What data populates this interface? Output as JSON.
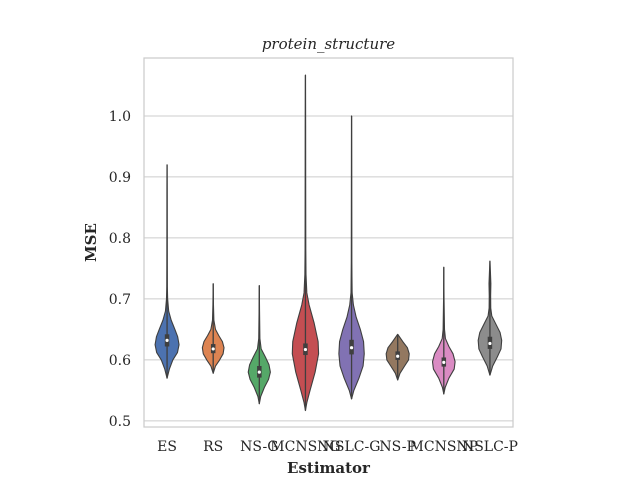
{
  "chart_data": {
    "type": "violin",
    "title": "protein_structure",
    "xlabel": "Estimator",
    "ylabel": "MSE",
    "ylim": [
      0.49,
      1.095
    ],
    "yticks": [
      0.5,
      0.6,
      0.7,
      0.8,
      0.9,
      1.0
    ],
    "ytick_labels": [
      "0.5",
      "0.6",
      "0.7",
      "0.8",
      "0.9",
      "1.0"
    ],
    "grid": "horizontal",
    "categories": [
      "ES",
      "RS",
      "NS-G",
      "MCNSNG",
      "NSLC-G",
      "NS-P",
      "MCNSNP",
      "NSLC-P"
    ],
    "violins": [
      {
        "name": "ES",
        "color": "#4c72b0",
        "min": 0.57,
        "max": 0.92,
        "q1": 0.622,
        "median": 0.632,
        "q3": 0.642,
        "profile": [
          [
            0.57,
            0
          ],
          [
            0.585,
            0.1
          ],
          [
            0.6,
            0.25
          ],
          [
            0.612,
            0.45
          ],
          [
            0.625,
            0.52
          ],
          [
            0.638,
            0.46
          ],
          [
            0.65,
            0.34
          ],
          [
            0.665,
            0.18
          ],
          [
            0.68,
            0.07
          ],
          [
            0.7,
            0.025
          ],
          [
            0.72,
            0.012
          ],
          [
            0.76,
            0.008
          ],
          [
            0.82,
            0.005
          ],
          [
            0.88,
            0.004
          ],
          [
            0.92,
            0
          ]
        ]
      },
      {
        "name": "RS",
        "color": "#dd8452",
        "min": 0.578,
        "max": 0.725,
        "q1": 0.611,
        "median": 0.618,
        "q3": 0.626,
        "profile": [
          [
            0.578,
            0
          ],
          [
            0.59,
            0.1
          ],
          [
            0.6,
            0.28
          ],
          [
            0.61,
            0.43
          ],
          [
            0.62,
            0.47
          ],
          [
            0.63,
            0.4
          ],
          [
            0.64,
            0.24
          ],
          [
            0.65,
            0.1
          ],
          [
            0.665,
            0.03
          ],
          [
            0.69,
            0.012
          ],
          [
            0.725,
            0
          ]
        ]
      },
      {
        "name": "NS-G",
        "color": "#55a868",
        "min": 0.528,
        "max": 0.722,
        "q1": 0.571,
        "median": 0.58,
        "q3": 0.59,
        "profile": [
          [
            0.528,
            0
          ],
          [
            0.54,
            0.06
          ],
          [
            0.555,
            0.22
          ],
          [
            0.568,
            0.4
          ],
          [
            0.58,
            0.48
          ],
          [
            0.592,
            0.42
          ],
          [
            0.605,
            0.26
          ],
          [
            0.618,
            0.08
          ],
          [
            0.635,
            0.025
          ],
          [
            0.68,
            0.01
          ],
          [
            0.722,
            0
          ]
        ]
      },
      {
        "name": "MCNSNG",
        "color": "#c44e52",
        "min": 0.517,
        "max": 1.067,
        "q1": 0.608,
        "median": 0.617,
        "q3": 0.627,
        "profile": [
          [
            0.517,
            0
          ],
          [
            0.53,
            0.06
          ],
          [
            0.55,
            0.2
          ],
          [
            0.58,
            0.42
          ],
          [
            0.61,
            0.57
          ],
          [
            0.63,
            0.55
          ],
          [
            0.66,
            0.38
          ],
          [
            0.69,
            0.16
          ],
          [
            0.71,
            0.06
          ],
          [
            0.74,
            0.025
          ],
          [
            0.78,
            0.015
          ],
          [
            0.82,
            0.012
          ],
          [
            0.9,
            0.008
          ],
          [
            0.98,
            0.006
          ],
          [
            1.067,
            0
          ]
        ]
      },
      {
        "name": "NSLC-G",
        "color": "#8172b3",
        "min": 0.536,
        "max": 1.0,
        "q1": 0.609,
        "median": 0.62,
        "q3": 0.633,
        "profile": [
          [
            0.536,
            0
          ],
          [
            0.55,
            0.1
          ],
          [
            0.57,
            0.32
          ],
          [
            0.59,
            0.5
          ],
          [
            0.61,
            0.55
          ],
          [
            0.63,
            0.52
          ],
          [
            0.65,
            0.38
          ],
          [
            0.67,
            0.2
          ],
          [
            0.69,
            0.08
          ],
          [
            0.71,
            0.025
          ],
          [
            0.76,
            0.01
          ],
          [
            0.85,
            0.006
          ],
          [
            1.0,
            0
          ]
        ]
      },
      {
        "name": "NS-P",
        "color": "#937860",
        "min": 0.567,
        "max": 0.642,
        "q1": 0.6,
        "median": 0.606,
        "q3": 0.614,
        "profile": [
          [
            0.567,
            0
          ],
          [
            0.578,
            0.1
          ],
          [
            0.59,
            0.3
          ],
          [
            0.6,
            0.47
          ],
          [
            0.61,
            0.5
          ],
          [
            0.62,
            0.42
          ],
          [
            0.63,
            0.22
          ],
          [
            0.64,
            0.04
          ],
          [
            0.642,
            0
          ]
        ]
      },
      {
        "name": "MCNSNP",
        "color": "#da8bc3",
        "min": 0.544,
        "max": 0.752,
        "q1": 0.589,
        "median": 0.596,
        "q3": 0.604,
        "profile": [
          [
            0.544,
            0
          ],
          [
            0.555,
            0.06
          ],
          [
            0.57,
            0.22
          ],
          [
            0.585,
            0.45
          ],
          [
            0.597,
            0.49
          ],
          [
            0.61,
            0.4
          ],
          [
            0.622,
            0.22
          ],
          [
            0.635,
            0.07
          ],
          [
            0.65,
            0.03
          ],
          [
            0.7,
            0.01
          ],
          [
            0.752,
            0
          ]
        ]
      },
      {
        "name": "NSLC-P",
        "color": "#8c8c8c",
        "min": 0.575,
        "max": 0.762,
        "q1": 0.618,
        "median": 0.627,
        "q3": 0.638,
        "profile": [
          [
            0.575,
            0
          ],
          [
            0.59,
            0.12
          ],
          [
            0.605,
            0.32
          ],
          [
            0.618,
            0.48
          ],
          [
            0.632,
            0.51
          ],
          [
            0.645,
            0.44
          ],
          [
            0.66,
            0.24
          ],
          [
            0.672,
            0.08
          ],
          [
            0.685,
            0.035
          ],
          [
            0.705,
            0.03
          ],
          [
            0.725,
            0.04
          ],
          [
            0.745,
            0.02
          ],
          [
            0.762,
            0
          ]
        ]
      }
    ]
  }
}
